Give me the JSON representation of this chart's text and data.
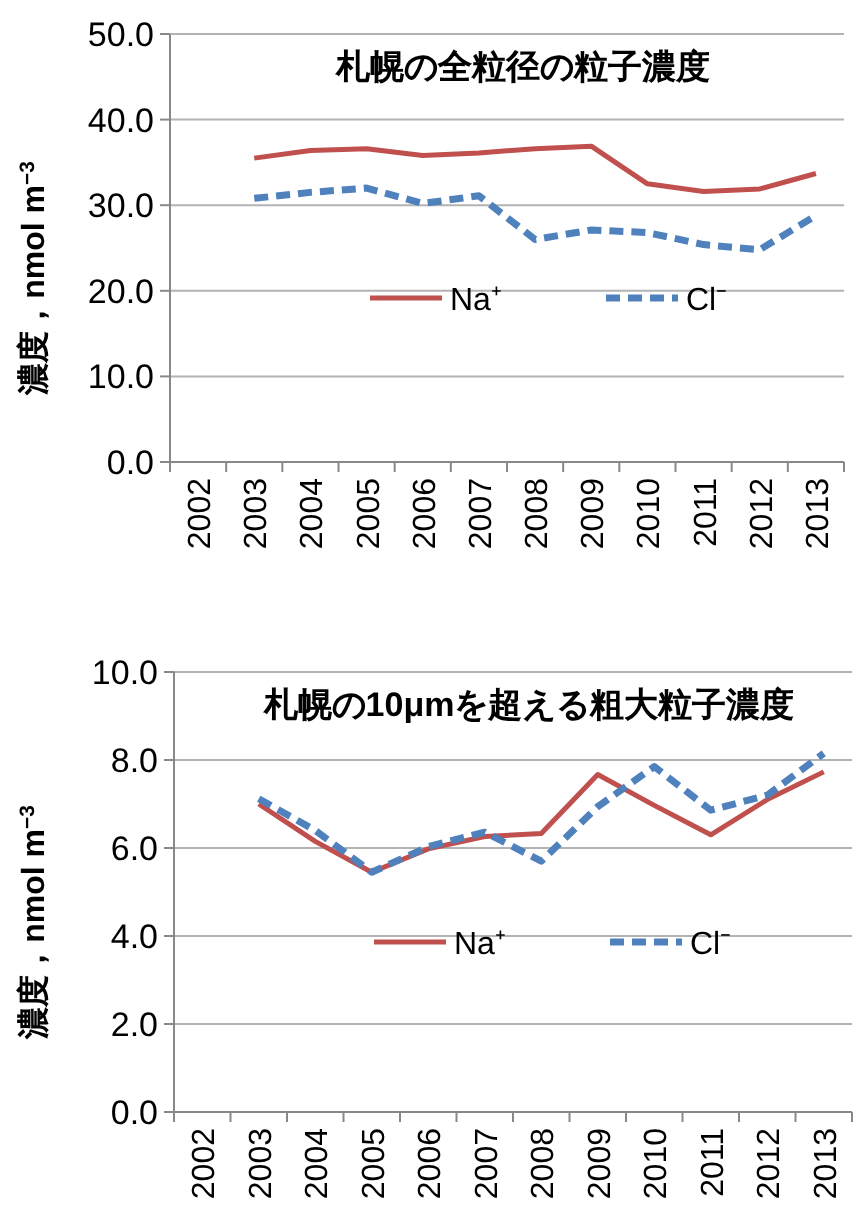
{
  "chart_data": [
    {
      "type": "line",
      "title": "札幌の全粒径の粒子濃度",
      "ylabel": "濃度，nmol m$^{−3}$",
      "categories": [
        "2002",
        "2003",
        "2004",
        "2005",
        "2006",
        "2007",
        "2008",
        "2009",
        "2010",
        "2011",
        "2012",
        "2013"
      ],
      "series": [
        {
          "name": "Na⁺",
          "color": "#c0504d",
          "line_style": "solid",
          "values": [
            null,
            35.5,
            36.4,
            36.6,
            35.8,
            36.1,
            36.6,
            36.9,
            32.5,
            31.6,
            31.9,
            33.7
          ]
        },
        {
          "name": "Cl⁻",
          "color": "#4f81bd",
          "line_style": "dashed",
          "values": [
            null,
            30.8,
            31.5,
            32.0,
            30.2,
            31.1,
            26.0,
            27.1,
            26.8,
            25.4,
            24.8,
            28.8
          ]
        }
      ],
      "ylim": [
        0,
        50
      ],
      "yticks": [
        {
          "value": 0,
          "label": "0.0"
        },
        {
          "value": 10,
          "label": "10.0"
        },
        {
          "value": 20,
          "label": "20.0"
        },
        {
          "value": 30,
          "label": "30.0"
        },
        {
          "value": 40,
          "label": "40.0"
        },
        {
          "value": 50,
          "label": "50.0"
        }
      ],
      "grid": "y",
      "legend": "center",
      "marker": "none"
    },
    {
      "type": "line",
      "title": "札幌の10μmを超える粗大粒子濃度",
      "ylabel": "濃度，nmol m$^{−3}$",
      "categories": [
        "2002",
        "2003",
        "2004",
        "2005",
        "2006",
        "2007",
        "2008",
        "2009",
        "2010",
        "2011",
        "2012",
        "2013"
      ],
      "series": [
        {
          "name": "Na⁺",
          "color": "#c0504d",
          "line_style": "solid",
          "values": [
            null,
            7.0,
            6.15,
            5.45,
            5.98,
            6.26,
            6.33,
            7.67,
            6.97,
            6.3,
            7.1,
            7.73
          ]
        },
        {
          "name": "Cl⁻",
          "color": "#4f81bd",
          "line_style": "dashed",
          "values": [
            null,
            7.12,
            6.4,
            5.45,
            6.03,
            6.36,
            5.7,
            6.94,
            7.85,
            6.86,
            7.2,
            8.15
          ]
        }
      ],
      "ylim": [
        0,
        10
      ],
      "yticks": [
        {
          "value": 0,
          "label": "0.0"
        },
        {
          "value": 2,
          "label": "2.0"
        },
        {
          "value": 4,
          "label": "4.0"
        },
        {
          "value": 6,
          "label": "6.0"
        },
        {
          "value": 8,
          "label": "8.0"
        },
        {
          "value": 10,
          "label": "10.0"
        }
      ],
      "grid": "y",
      "legend": "center",
      "marker": "none"
    }
  ]
}
